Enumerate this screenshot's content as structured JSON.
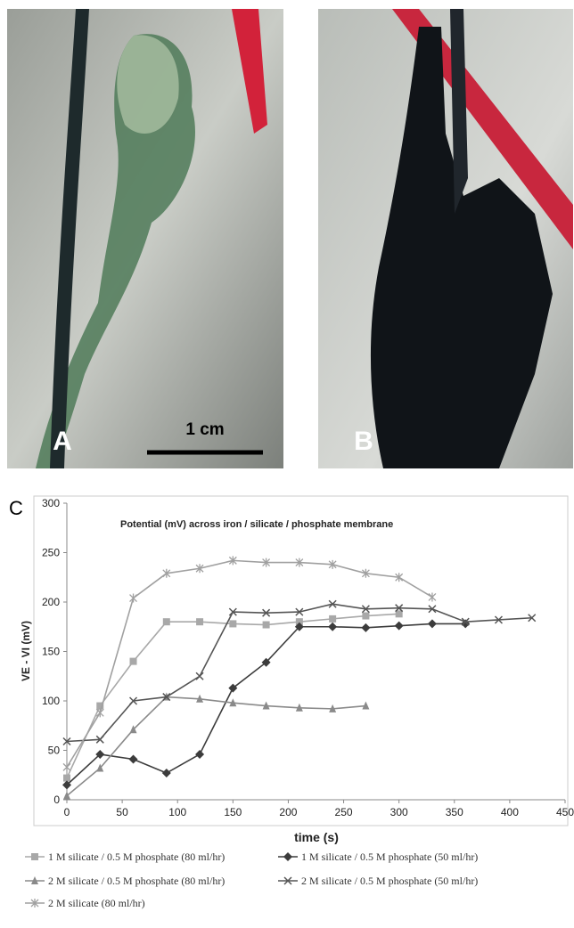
{
  "panel_labels": {
    "a": "A",
    "b": "B",
    "c": "C"
  },
  "scale_bar": "1 cm",
  "chart_data": {
    "type": "line",
    "title": "Potential (mV) across iron / silicate / phosphate membrane",
    "x_label": "time (s)",
    "y_label": "VE - VI (mV)",
    "xlim": [
      0,
      450
    ],
    "xticks": [
      0,
      50,
      100,
      150,
      200,
      250,
      300,
      350,
      400,
      450
    ],
    "ylim": [
      0,
      300
    ],
    "yticks": [
      0,
      50,
      100,
      150,
      200,
      250,
      300
    ],
    "grid": false,
    "legend": "bottom",
    "series": [
      {
        "name": "1 M silicate / 0.5 M phosphate (80 ml/hr)",
        "color": "#a8a8a8",
        "marker": "square",
        "x": [
          0,
          30,
          60,
          90,
          120,
          150,
          180,
          210,
          240,
          270,
          300
        ],
        "values": [
          22,
          95,
          140,
          180,
          180,
          178,
          177,
          180,
          183,
          186,
          188
        ]
      },
      {
        "name": "1 M silicate / 0.5 M phosphate (50 ml/hr)",
        "color": "#3c3c3c",
        "marker": "diamond",
        "x": [
          0,
          30,
          60,
          90,
          120,
          150,
          180,
          210,
          240,
          270,
          300,
          330,
          360
        ],
        "values": [
          15,
          46,
          41,
          27,
          46,
          113,
          139,
          175,
          175,
          174,
          176,
          178,
          178
        ]
      },
      {
        "name": "2 M silicate / 0.5 M phosphate (80 ml/hr)",
        "color": "#8a8a8a",
        "marker": "triangle",
        "x": [
          0,
          30,
          60,
          90,
          120,
          150,
          180,
          210,
          240,
          270
        ],
        "values": [
          4,
          32,
          71,
          104,
          102,
          98,
          95,
          93,
          92,
          95
        ]
      },
      {
        "name": "2 M silicate / 0.5 M phosphate (50 ml/hr)",
        "color": "#555555",
        "marker": "x",
        "x": [
          0,
          30,
          60,
          90,
          120,
          150,
          180,
          210,
          240,
          270,
          300,
          330,
          360,
          390,
          420
        ],
        "values": [
          59,
          61,
          100,
          104,
          125,
          190,
          189,
          190,
          198,
          193,
          194,
          193,
          180,
          182,
          184
        ]
      },
      {
        "name": "2 M silicate (80 ml/hr)",
        "color": "#a0a0a0",
        "marker": "star",
        "x": [
          0,
          30,
          60,
          90,
          120,
          150,
          180,
          210,
          240,
          270,
          300,
          330
        ],
        "values": [
          33,
          88,
          204,
          229,
          234,
          242,
          240,
          240,
          238,
          229,
          225,
          205
        ]
      }
    ]
  }
}
